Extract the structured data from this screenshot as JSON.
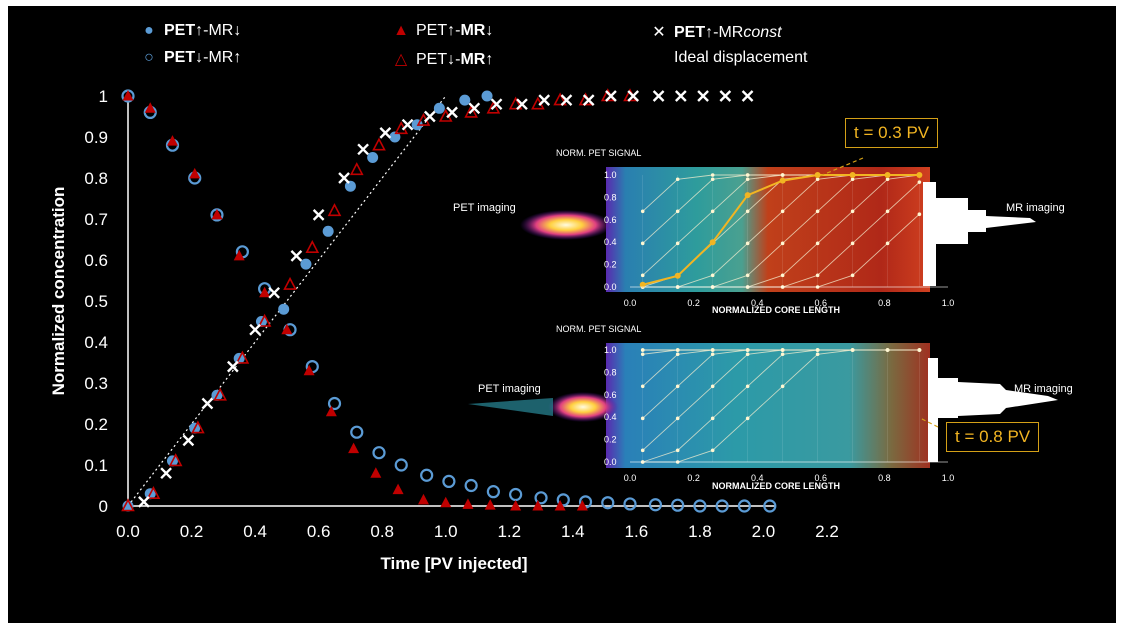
{
  "legend": {
    "e1_b": "PET↑",
    "e1_r": "-MR↓",
    "e2_b": "PET↓",
    "e2_r": "-MR↑",
    "e3_a": "PET↑-",
    "e3_b": "MR↓",
    "e4_a": "PET↓-",
    "e4_b": "MR↑",
    "e5_b": "PET↑",
    "e5_r": "-MR",
    "e5_i": "const",
    "e6": "Ideal displacement"
  },
  "colors": {
    "blue": "#5b9bd5",
    "red": "#c00000",
    "white": "#ffffff",
    "gold": "#d4a017",
    "background": "#000000"
  },
  "chart_data": {
    "type": "scatter",
    "xlabel": "Time [PV injected]",
    "ylabel": "Normalized concentration",
    "xlim": [
      0,
      2.2
    ],
    "ylim": [
      0,
      1
    ],
    "xticks": [
      "0.0",
      "0.2",
      "0.4",
      "0.6",
      "0.8",
      "1.0",
      "1.2",
      "1.4",
      "1.6",
      "1.8",
      "2.0",
      "2.2"
    ],
    "yticks": [
      "0",
      "0.1",
      "0.2",
      "0.3",
      "0.4",
      "0.5",
      "0.6",
      "0.7",
      "0.8",
      "0.9",
      "1"
    ],
    "series": [
      {
        "name": "PET↑-MR↓",
        "marker": "filled-circle",
        "color": "#5b9bd5",
        "x": [
          0.0,
          0.07,
          0.14,
          0.21,
          0.28,
          0.35,
          0.42,
          0.49,
          0.56,
          0.63,
          0.7,
          0.77,
          0.84,
          0.91,
          0.98,
          1.06,
          1.13
        ],
        "y": [
          0.0,
          0.03,
          0.11,
          0.19,
          0.27,
          0.36,
          0.45,
          0.48,
          0.59,
          0.67,
          0.78,
          0.85,
          0.9,
          0.93,
          0.97,
          0.99,
          1.0
        ]
      },
      {
        "name": "PET↓-MR↑",
        "marker": "open-circle",
        "color": "#5b9bd5",
        "x": [
          0.0,
          0.07,
          0.14,
          0.21,
          0.28,
          0.36,
          0.43,
          0.51,
          0.58,
          0.65,
          0.72,
          0.79,
          0.86,
          0.94,
          1.01,
          1.08,
          1.15,
          1.22,
          1.3,
          1.37,
          1.44,
          1.51,
          1.58,
          1.66,
          1.73,
          1.8,
          1.87,
          1.94,
          2.02
        ],
        "y": [
          1.0,
          0.96,
          0.88,
          0.8,
          0.71,
          0.62,
          0.53,
          0.43,
          0.34,
          0.25,
          0.18,
          0.13,
          0.1,
          0.075,
          0.06,
          0.05,
          0.035,
          0.028,
          0.02,
          0.015,
          0.01,
          0.008,
          0.005,
          0.003,
          0.002,
          0.0,
          0.0,
          0.0,
          0.0
        ]
      },
      {
        "name": "PET↑-MR↓",
        "marker": "filled-triangle",
        "color": "#c00000",
        "x": [
          0.0,
          0.07,
          0.14,
          0.21,
          0.28,
          0.35,
          0.43,
          0.5,
          0.57,
          0.64,
          0.71,
          0.78,
          0.85,
          0.93,
          1.0,
          1.07,
          1.14,
          1.22,
          1.29,
          1.36,
          1.43
        ],
        "y": [
          1.0,
          0.97,
          0.89,
          0.81,
          0.71,
          0.61,
          0.52,
          0.43,
          0.33,
          0.23,
          0.14,
          0.08,
          0.04,
          0.015,
          0.008,
          0.004,
          0.002,
          0.0,
          0.0,
          0.0,
          0.0
        ]
      },
      {
        "name": "PET↓-MR↑",
        "marker": "open-triangle",
        "color": "#c00000",
        "x": [
          0.0,
          0.08,
          0.15,
          0.22,
          0.29,
          0.36,
          0.43,
          0.51,
          0.58,
          0.65,
          0.72,
          0.79,
          0.86,
          0.93,
          1.0,
          1.08,
          1.15,
          1.22,
          1.29,
          1.36,
          1.44,
          1.51,
          1.58
        ],
        "y": [
          0.0,
          0.03,
          0.11,
          0.19,
          0.27,
          0.36,
          0.45,
          0.54,
          0.63,
          0.72,
          0.82,
          0.88,
          0.92,
          0.94,
          0.95,
          0.96,
          0.97,
          0.98,
          0.98,
          0.99,
          0.99,
          1.0,
          1.0
        ]
      },
      {
        "name": "PET↑-MRconst",
        "marker": "cross",
        "color": "#ffffff",
        "x": [
          0.05,
          0.12,
          0.19,
          0.25,
          0.33,
          0.4,
          0.46,
          0.53,
          0.6,
          0.68,
          0.74,
          0.81,
          0.88,
          0.95,
          1.02,
          1.09,
          1.16,
          1.24,
          1.31,
          1.38,
          1.45,
          1.52,
          1.59,
          1.67,
          1.74,
          1.81,
          1.88,
          1.95
        ],
        "y": [
          0.01,
          0.08,
          0.16,
          0.25,
          0.34,
          0.43,
          0.52,
          0.61,
          0.71,
          0.8,
          0.87,
          0.91,
          0.93,
          0.95,
          0.96,
          0.97,
          0.98,
          0.98,
          0.99,
          0.99,
          0.99,
          1.0,
          1.0,
          1.0,
          1.0,
          1.0,
          1.0,
          1.0
        ]
      },
      {
        "name": "Ideal displacement",
        "marker": "dotted-line",
        "color": "#ffffff",
        "x": [
          0.0,
          0.94,
          1.0
        ],
        "y": [
          0.0,
          0.94,
          1.0
        ]
      }
    ]
  },
  "insets": {
    "top": {
      "ytitle": "NORM. PET SIGNAL",
      "xtitle": "NORMALIZED CORE LENGTH",
      "left_label": "PET imaging",
      "right_label": "MR imaging",
      "callout": "t = 0.3 PV",
      "xticks": [
        "0.0",
        "0.2",
        "0.4",
        "0.6",
        "0.8",
        "1.0"
      ],
      "yticks": [
        "0.0",
        "0.2",
        "0.4",
        "0.6",
        "0.8",
        "1.0"
      ],
      "highlight_profile": {
        "x": [
          0.04,
          0.15,
          0.26,
          0.37,
          0.48,
          0.59,
          0.7,
          0.81,
          0.91
        ],
        "y": [
          0.02,
          0.1,
          0.4,
          0.82,
          0.95,
          1.0,
          1.0,
          1.0,
          1.0
        ]
      }
    },
    "bottom": {
      "ytitle": "NORM. PET SIGNAL",
      "xtitle": "NORMALIZED CORE LENGTH",
      "left_label": "PET imaging",
      "right_label": "MR imaging",
      "callout": "t = 0.8 PV",
      "xticks": [
        "0.0",
        "0.2",
        "0.4",
        "0.6",
        "0.8",
        "1.0"
      ],
      "yticks": [
        "0.0",
        "0.2",
        "0.4",
        "0.6",
        "0.8",
        "1.0"
      ]
    }
  }
}
